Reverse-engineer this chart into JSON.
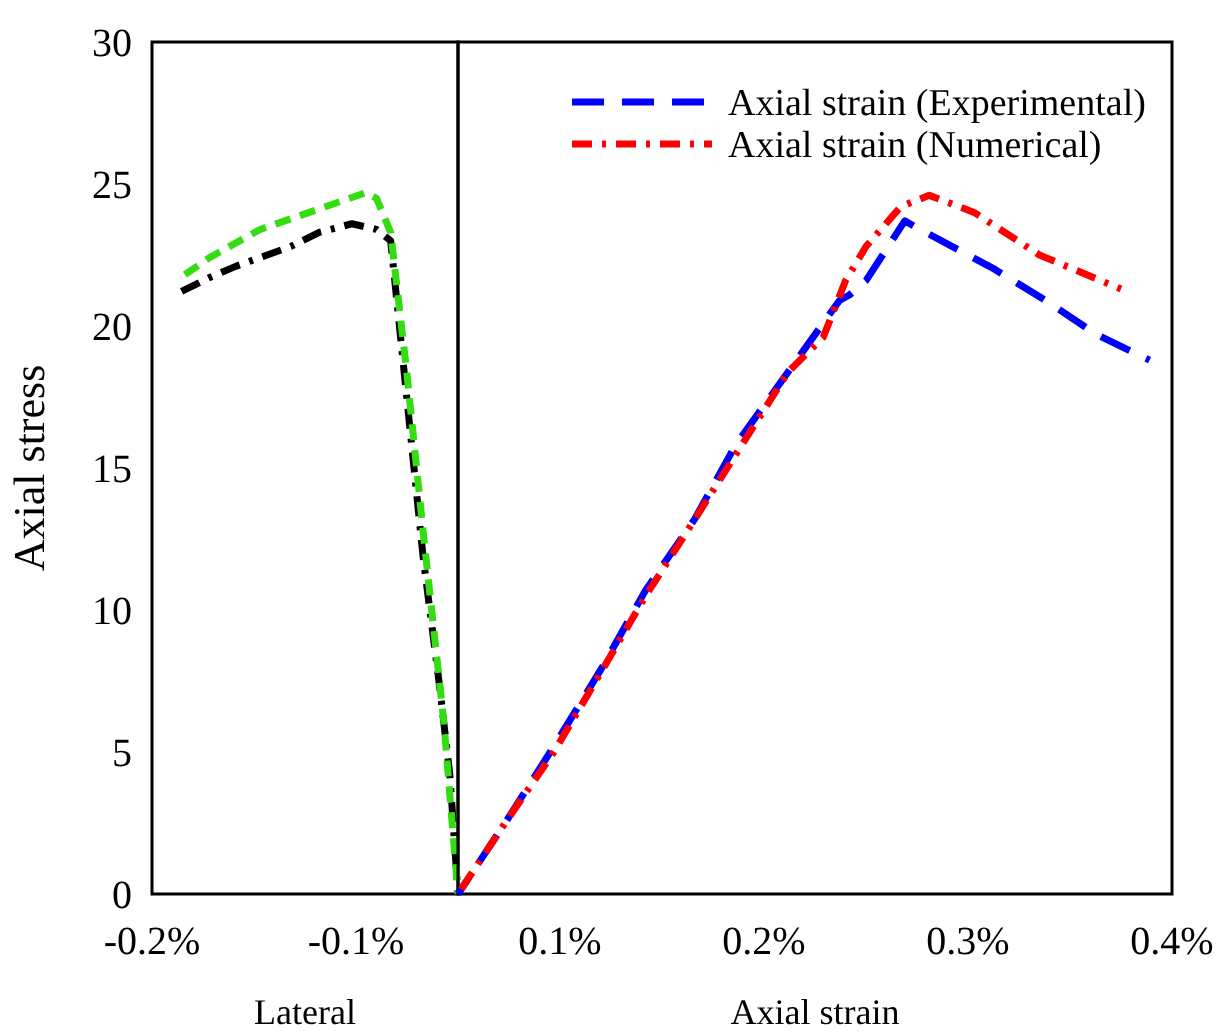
{
  "chart_data": [
    {
      "type": "line",
      "ylabel": "Axial stress",
      "xlabel": "Lateral",
      "xlim": [
        -0.2,
        -0.05
      ],
      "xticks": [
        {
          "value": -0.2,
          "label": "-0.2%"
        },
        {
          "value": -0.1,
          "label": "-0.1%"
        }
      ],
      "ylim": [
        0,
        30
      ],
      "yticks": [
        0,
        5,
        10,
        15,
        20,
        25,
        30
      ],
      "series": [
        {
          "color": "#000000",
          "line_style": "dashdot",
          "x": [
            -0.186,
            -0.172,
            -0.159,
            -0.132,
            -0.118,
            -0.102,
            -0.09,
            -0.083,
            -0.075,
            -0.067,
            -0.059,
            -0.054,
            -0.05
          ],
          "values": [
            21.2,
            21.7,
            22.1,
            22.8,
            23.3,
            23.6,
            23.4,
            23.0,
            17.4,
            11.8,
            7.3,
            4.2,
            0
          ]
        },
        {
          "color": "#33dd11",
          "line_style": "dashed",
          "x": [
            -0.184,
            -0.172,
            -0.147,
            -0.115,
            -0.095,
            -0.09,
            -0.083,
            -0.075,
            -0.067,
            -0.057,
            -0.05
          ],
          "values": [
            21.8,
            22.4,
            23.4,
            24.2,
            24.7,
            24.5,
            23.3,
            18.3,
            12.7,
            6.1,
            0
          ]
        }
      ]
    },
    {
      "type": "line",
      "xlabel": "Axial strain",
      "tick_labels": "x",
      "legend": "top right",
      "xlim": [
        0.05,
        0.4
      ],
      "xticks": [
        {
          "value": 0.1,
          "label": "0.1%"
        },
        {
          "value": 0.2,
          "label": "0.2%"
        },
        {
          "value": 0.3,
          "label": "0.3%"
        },
        {
          "value": 0.4,
          "label": "0.4%"
        }
      ],
      "ylim": [
        0,
        30
      ],
      "series": [
        {
          "name": "Axial strain (Experimental)",
          "color": "#0000ff",
          "line_style": "longdash",
          "x": [
            0.05,
            0.074,
            0.097,
            0.12,
            0.142,
            0.166,
            0.186,
            0.211,
            0.237,
            0.242,
            0.25,
            0.269,
            0.274,
            0.313,
            0.338,
            0.363,
            0.389
          ],
          "values": [
            0,
            2.6,
            5.2,
            7.9,
            10.7,
            13.2,
            15.8,
            18.3,
            20.9,
            21.1,
            21.6,
            23.7,
            23.5,
            22.0,
            20.9,
            19.7,
            18.8
          ]
        },
        {
          "name": "Axial strain (Numerical)",
          "color": "#ff0000",
          "line_style": "dashdot",
          "x": [
            0.05,
            0.074,
            0.097,
            0.12,
            0.142,
            0.167,
            0.189,
            0.212,
            0.229,
            0.24,
            0.25,
            0.267,
            0.281,
            0.303,
            0.335,
            0.375
          ],
          "values": [
            0,
            2.6,
            5.0,
            7.8,
            10.5,
            13.3,
            15.8,
            18.4,
            19.6,
            21.6,
            22.8,
            24.2,
            24.6,
            24.0,
            22.5,
            21.3
          ]
        }
      ]
    }
  ]
}
